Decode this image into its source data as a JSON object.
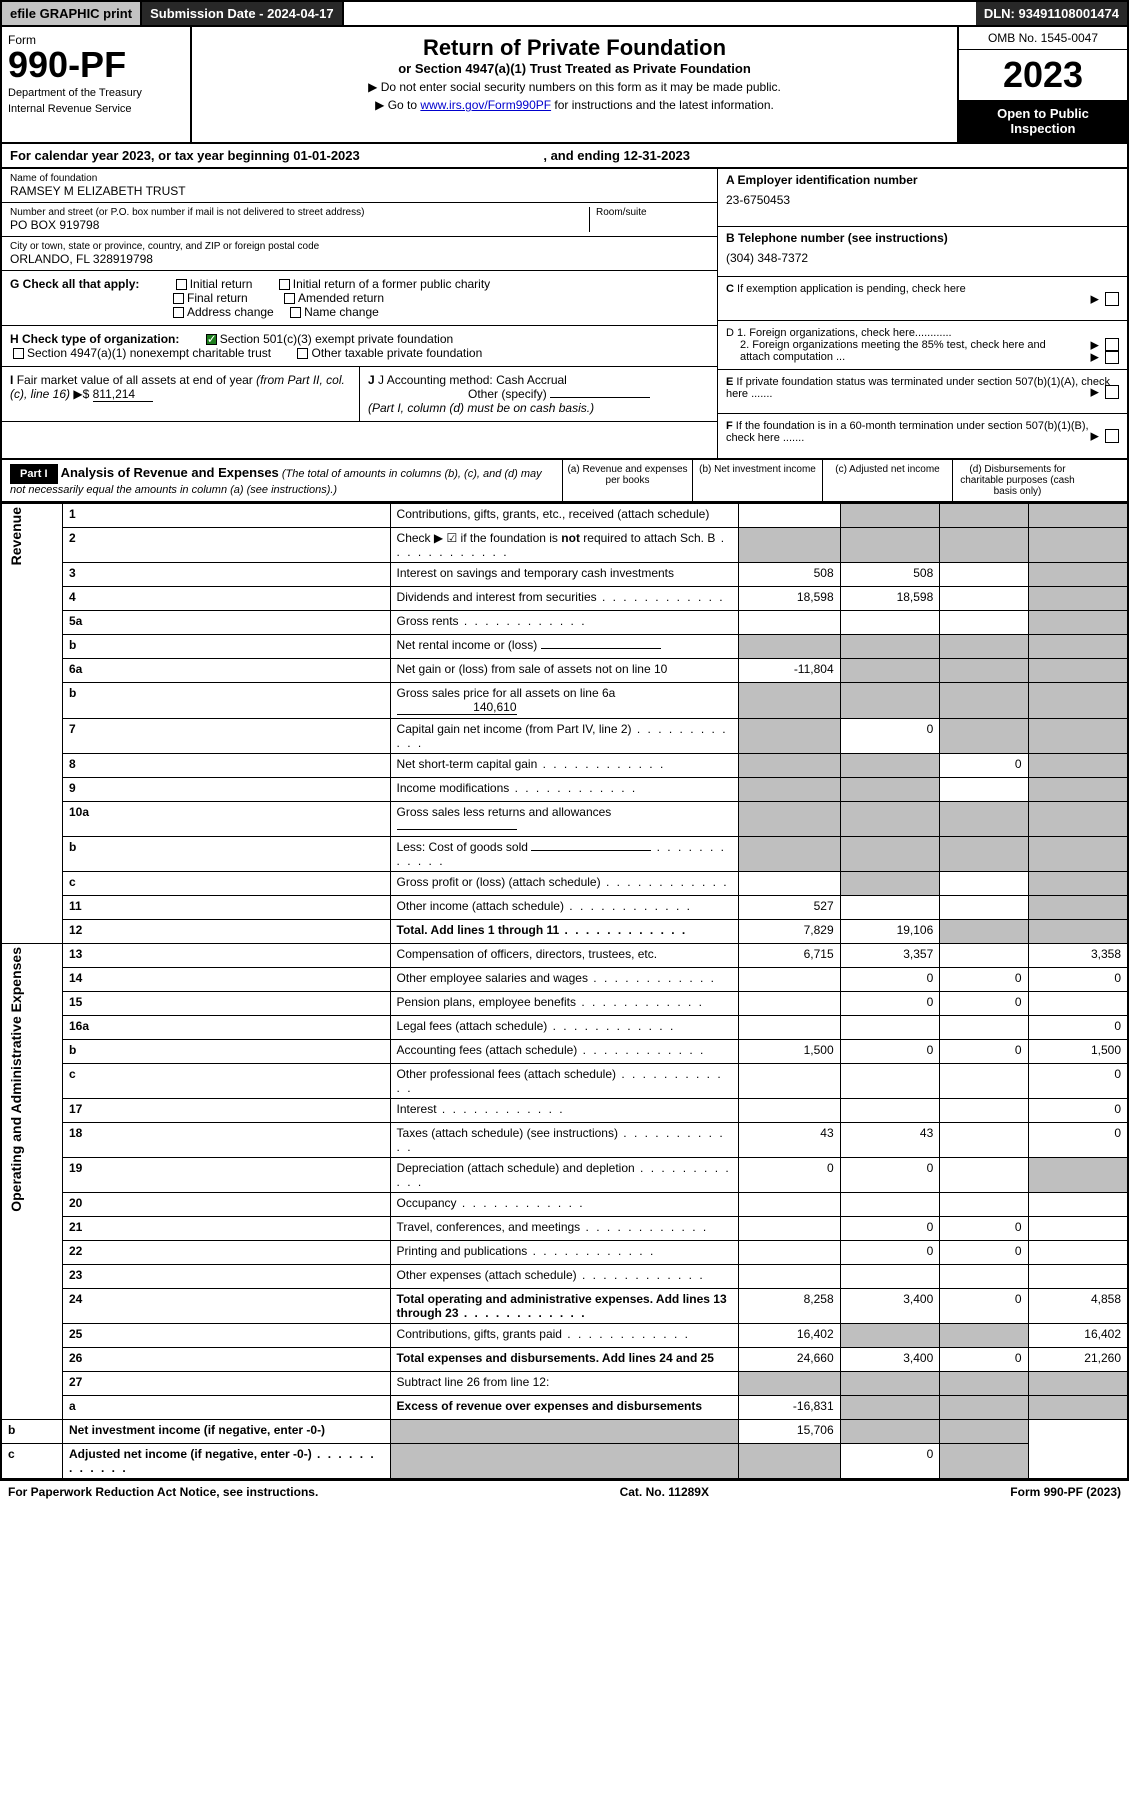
{
  "top": {
    "efile": "efile GRAPHIC print",
    "subdate": "Submission Date - 2024-04-17",
    "dln": "DLN: 93491108001474"
  },
  "hdr": {
    "form": "Form",
    "no": "990-PF",
    "dept": "Department of the Treasury",
    "irs": "Internal Revenue Service",
    "title": "Return of Private Foundation",
    "sub": "or Section 4947(a)(1) Trust Treated as Private Foundation",
    "i1": "▶ Do not enter social security numbers on this form as it may be made public.",
    "i2": "▶ Go to ",
    "i2link": "www.irs.gov/Form990PF",
    "i2end": " for instructions and the latest information.",
    "omb": "OMB No. 1545-0047",
    "year": "2023",
    "open": "Open to Public Inspection"
  },
  "cal": {
    "pre": "For calendar year 2023, or tax year beginning ",
    "begin": "01-01-2023",
    "mid": " , and ending ",
    "end": "12-31-2023"
  },
  "name": {
    "lbl": "Name of foundation",
    "val": "RAMSEY M ELIZABETH TRUST"
  },
  "ein": {
    "lbl": "A Employer identification number",
    "val": "23-6750453"
  },
  "addr": {
    "lbl": "Number and street (or P.O. box number if mail is not delivered to street address)",
    "room": "Room/suite",
    "val": "PO BOX 919798"
  },
  "tel": {
    "lbl": "B Telephone number (see instructions)",
    "val": "(304) 348-7372"
  },
  "city": {
    "lbl": "City or town, state or province, country, and ZIP or foreign postal code",
    "val": "ORLANDO, FL  328919798"
  },
  "c": "C If exemption application is pending, check here",
  "g": {
    "lbl": "G Check all that apply:",
    "o1": "Initial return",
    "o2": "Initial return of a former public charity",
    "o3": "Final return",
    "o4": "Amended return",
    "o5": "Address change",
    "o6": "Name change"
  },
  "d": {
    "d1": "D 1. Foreign organizations, check here............",
    "d2": "2. Foreign organizations meeting the 85% test, check here and attach computation ..."
  },
  "h": {
    "lbl": "H Check type of organization:",
    "o1": "Section 501(c)(3) exempt private foundation",
    "o2": "Section 4947(a)(1) nonexempt charitable trust",
    "o3": "Other taxable private foundation"
  },
  "e": "E If private foundation status was terminated under section 507(b)(1)(A), check here .......",
  "i": {
    "lbl": "I Fair market value of all assets at end of year (from Part II, col. (c), line 16) ▶$ ",
    "val": "811,214"
  },
  "j": {
    "lbl": "J Accounting method:",
    "o1": "Cash",
    "o2": "Accrual",
    "o3": "Other (specify)",
    "note": "(Part I, column (d) must be on cash basis.)"
  },
  "f": "F If the foundation is in a 60-month termination under section 507(b)(1)(B), check here .......",
  "p1": {
    "lbl": "Part I",
    "title": "Analysis of Revenue and Expenses",
    "note": "(The total of amounts in columns (b), (c), and (d) may not necessarily equal the amounts in column (a) (see instructions).)",
    "ca": "(a) Revenue and expenses per books",
    "cb": "(b) Net investment income",
    "cc": "(c) Adjusted net income",
    "cd": "(d) Disbursements for charitable purposes (cash basis only)"
  },
  "side_rev": "Revenue",
  "side_exp": "Operating and Administrative Expenses",
  "rows": [
    {
      "n": "1",
      "d": "Contributions, gifts, grants, etc., received (attach schedule)",
      "a": "",
      "b": "g",
      "c": "g",
      "dd": "g"
    },
    {
      "n": "2",
      "d": "Check ▶ ☑ if the foundation is ",
      "d2": "not",
      "d3": " required to attach Sch. B",
      "a": "g",
      "b": "g",
      "c": "g",
      "dd": "g",
      "dots": 1
    },
    {
      "n": "3",
      "d": "Interest on savings and temporary cash investments",
      "a": "508",
      "b": "508",
      "c": "",
      "dd": "g"
    },
    {
      "n": "4",
      "d": "Dividends and interest from securities",
      "a": "18,598",
      "b": "18,598",
      "c": "",
      "dd": "g",
      "dots": 1
    },
    {
      "n": "5a",
      "d": "Gross rents",
      "a": "",
      "b": "",
      "c": "",
      "dd": "g",
      "dots": 1
    },
    {
      "n": "b",
      "d": "Net rental income or (loss)",
      "a": "g",
      "b": "g",
      "c": "g",
      "dd": "g",
      "ul": 1
    },
    {
      "n": "6a",
      "d": "Net gain or (loss) from sale of assets not on line 10",
      "a": "-11,804",
      "b": "g",
      "c": "g",
      "dd": "g"
    },
    {
      "n": "b",
      "d": "Gross sales price for all assets on line 6a",
      "a": "g",
      "b": "g",
      "c": "g",
      "dd": "g",
      "inline": "140,610"
    },
    {
      "n": "7",
      "d": "Capital gain net income (from Part IV, line 2)",
      "a": "g",
      "b": "0",
      "c": "g",
      "dd": "g",
      "dots": 1
    },
    {
      "n": "8",
      "d": "Net short-term capital gain",
      "a": "g",
      "b": "g",
      "c": "0",
      "dd": "g",
      "dots": 1
    },
    {
      "n": "9",
      "d": "Income modifications",
      "a": "g",
      "b": "g",
      "c": "",
      "dd": "g",
      "dots": 1
    },
    {
      "n": "10a",
      "d": "Gross sales less returns and allowances",
      "a": "g",
      "b": "g",
      "c": "g",
      "dd": "g",
      "ul": 1
    },
    {
      "n": "b",
      "d": "Less: Cost of goods sold",
      "a": "g",
      "b": "g",
      "c": "g",
      "dd": "g",
      "dots": 1,
      "ul": 1
    },
    {
      "n": "c",
      "d": "Gross profit or (loss) (attach schedule)",
      "a": "",
      "b": "g",
      "c": "",
      "dd": "g",
      "dots": 1
    },
    {
      "n": "11",
      "d": "Other income (attach schedule)",
      "a": "527",
      "b": "",
      "c": "",
      "dd": "g",
      "dots": 1
    },
    {
      "n": "12",
      "d": "Total. Add lines 1 through 11",
      "a": "7,829",
      "b": "19,106",
      "c": "g",
      "dd": "g",
      "bold": 1,
      "dots": 1
    },
    {
      "n": "13",
      "d": "Compensation of officers, directors, trustees, etc.",
      "a": "6,715",
      "b": "3,357",
      "c": "",
      "dd": "3,358"
    },
    {
      "n": "14",
      "d": "Other employee salaries and wages",
      "a": "",
      "b": "0",
      "c": "0",
      "dd": "0",
      "dots": 1
    },
    {
      "n": "15",
      "d": "Pension plans, employee benefits",
      "a": "",
      "b": "0",
      "c": "0",
      "dd": "",
      "dots": 1
    },
    {
      "n": "16a",
      "d": "Legal fees (attach schedule)",
      "a": "",
      "b": "",
      "c": "",
      "dd": "0",
      "dots": 1
    },
    {
      "n": "b",
      "d": "Accounting fees (attach schedule)",
      "a": "1,500",
      "b": "0",
      "c": "0",
      "dd": "1,500",
      "dots": 1
    },
    {
      "n": "c",
      "d": "Other professional fees (attach schedule)",
      "a": "",
      "b": "",
      "c": "",
      "dd": "0",
      "dots": 1
    },
    {
      "n": "17",
      "d": "Interest",
      "a": "",
      "b": "",
      "c": "",
      "dd": "0",
      "dots": 1
    },
    {
      "n": "18",
      "d": "Taxes (attach schedule) (see instructions)",
      "a": "43",
      "b": "43",
      "c": "",
      "dd": "0",
      "dots": 1
    },
    {
      "n": "19",
      "d": "Depreciation (attach schedule) and depletion",
      "a": "0",
      "b": "0",
      "c": "",
      "dd": "g",
      "dots": 1
    },
    {
      "n": "20",
      "d": "Occupancy",
      "a": "",
      "b": "",
      "c": "",
      "dd": "",
      "dots": 1
    },
    {
      "n": "21",
      "d": "Travel, conferences, and meetings",
      "a": "",
      "b": "0",
      "c": "0",
      "dd": "",
      "dots": 1
    },
    {
      "n": "22",
      "d": "Printing and publications",
      "a": "",
      "b": "0",
      "c": "0",
      "dd": "",
      "dots": 1
    },
    {
      "n": "23",
      "d": "Other expenses (attach schedule)",
      "a": "",
      "b": "",
      "c": "",
      "dd": "",
      "dots": 1
    },
    {
      "n": "24",
      "d": "Total operating and administrative expenses. Add lines 13 through 23",
      "a": "8,258",
      "b": "3,400",
      "c": "0",
      "dd": "4,858",
      "bold": 1,
      "dots": 1
    },
    {
      "n": "25",
      "d": "Contributions, gifts, grants paid",
      "a": "16,402",
      "b": "g",
      "c": "g",
      "dd": "16,402",
      "dots": 1
    },
    {
      "n": "26",
      "d": "Total expenses and disbursements. Add lines 24 and 25",
      "a": "24,660",
      "b": "3,400",
      "c": "0",
      "dd": "21,260",
      "bold": 1
    },
    {
      "n": "27",
      "d": "Subtract line 26 from line 12:",
      "a": "g",
      "b": "g",
      "c": "g",
      "dd": "g"
    },
    {
      "n": "a",
      "d": "Excess of revenue over expenses and disbursements",
      "a": "-16,831",
      "b": "g",
      "c": "g",
      "dd": "g",
      "bold": 1
    },
    {
      "n": "b",
      "d": "Net investment income (if negative, enter -0-)",
      "a": "g",
      "b": "15,706",
      "c": "g",
      "dd": "g",
      "bold": 1
    },
    {
      "n": "c",
      "d": "Adjusted net income (if negative, enter -0-)",
      "a": "g",
      "b": "g",
      "c": "0",
      "dd": "g",
      "bold": 1,
      "dots": 1
    }
  ],
  "footer": {
    "l": "For Paperwork Reduction Act Notice, see instructions.",
    "m": "Cat. No. 11289X",
    "r": "Form 990-PF (2023)"
  }
}
